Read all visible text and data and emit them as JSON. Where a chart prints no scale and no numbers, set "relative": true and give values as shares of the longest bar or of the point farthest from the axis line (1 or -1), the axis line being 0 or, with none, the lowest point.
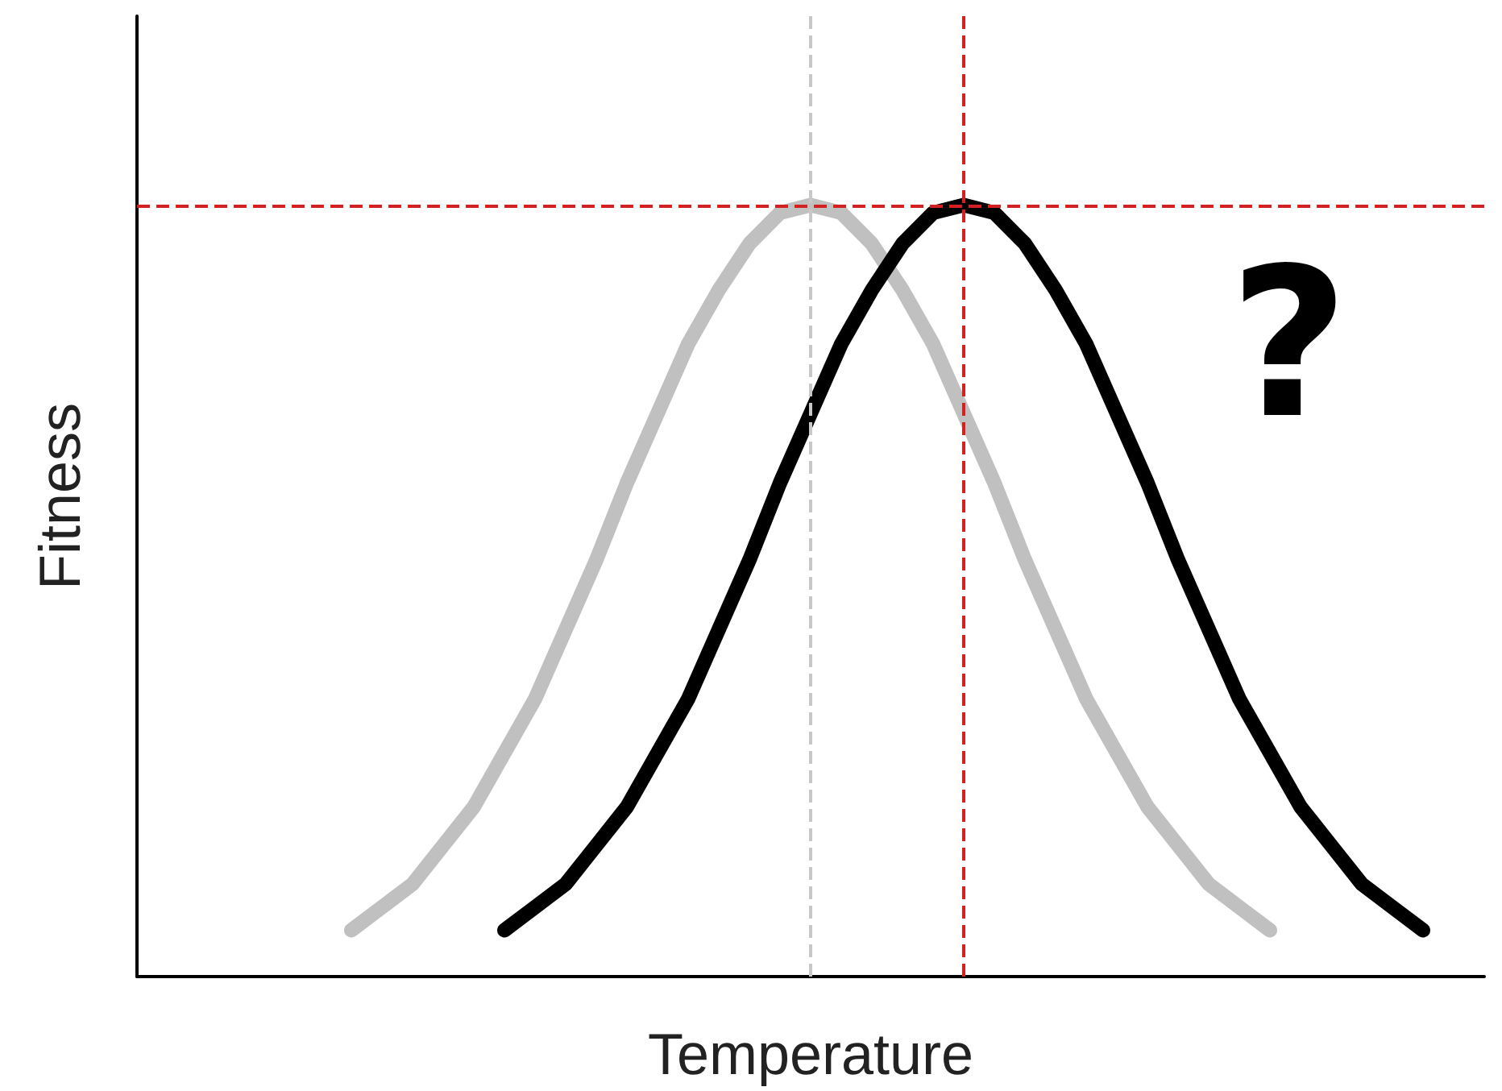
{
  "chart_data": {
    "type": "line",
    "relative": true,
    "xlabel": "Temperature",
    "ylabel": "Fitness",
    "marker": "none",
    "line_style": "solid",
    "grid": false,
    "categories": [
      null,
      null,
      null,
      null,
      null,
      null,
      null,
      null,
      null,
      null,
      null,
      null,
      null,
      null,
      null,
      null,
      null,
      null,
      null,
      null,
      null,
      null,
      null,
      null,
      null,
      null,
      null,
      null,
      null,
      null,
      null,
      null,
      null,
      null,
      null,
      null,
      null,
      null,
      null,
      null,
      null,
      null,
      null,
      null,
      null
    ],
    "series": [
      {
        "color": "#c0c0c0",
        "values": [
          null,
          null,
          null,
          null,
          null,
          null,
          null,
          0.06,
          0.09,
          0.12,
          0.17,
          0.22,
          0.29,
          0.36,
          0.45,
          0.54,
          0.64,
          0.73,
          0.82,
          0.89,
          0.95,
          0.99,
          1,
          0.99,
          0.95,
          0.89,
          0.82,
          0.73,
          0.64,
          0.54,
          0.45,
          0.36,
          0.29,
          0.22,
          0.17,
          0.12,
          0.09,
          0.06,
          null,
          null,
          null,
          null,
          null,
          null,
          null
        ]
      },
      {
        "color": "#000000",
        "values": [
          null,
          null,
          null,
          null,
          null,
          null,
          null,
          null,
          null,
          null,
          null,
          null,
          0.06,
          0.09,
          0.12,
          0.17,
          0.22,
          0.29,
          0.36,
          0.45,
          0.54,
          0.64,
          0.73,
          0.82,
          0.89,
          0.95,
          0.99,
          1,
          0.99,
          0.95,
          0.89,
          0.82,
          0.73,
          0.64,
          0.54,
          0.45,
          0.36,
          0.29,
          0.22,
          0.17,
          0.12,
          0.09,
          0.06,
          null,
          null
        ]
      }
    ],
    "ref_lines": [
      {
        "axis": "y",
        "value": 1,
        "color": "#d42020",
        "line_style": "dashed"
      }
    ],
    "annotations": [
      "?"
    ]
  }
}
